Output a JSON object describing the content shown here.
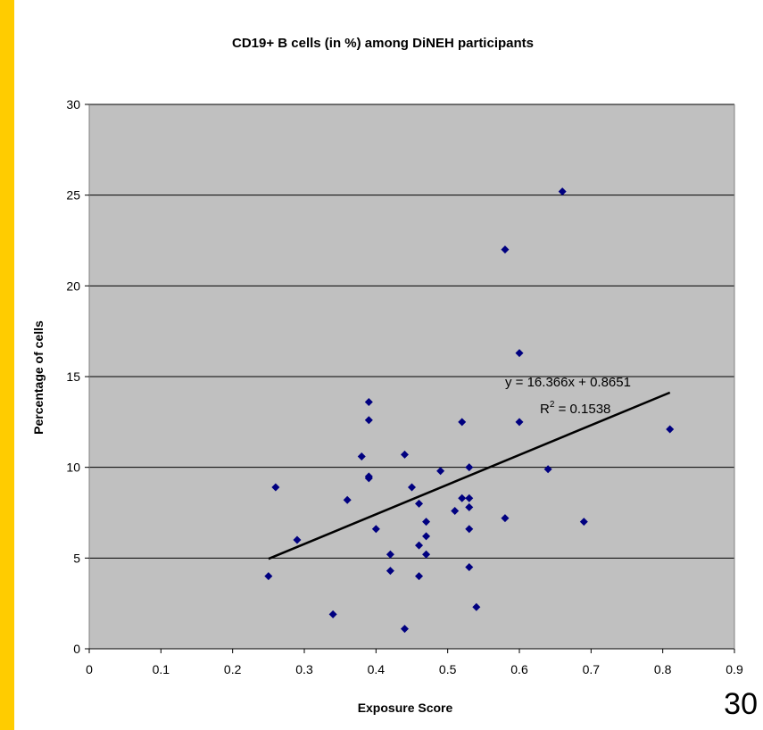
{
  "chart_data": {
    "type": "scatter",
    "title": "CD19+ B cells (in %) among DiNEH participants",
    "xlabel": "Exposure Score",
    "ylabel": "Percentage of cells",
    "xlim": [
      0,
      0.9
    ],
    "ylim": [
      0,
      30
    ],
    "x_ticks": [
      "0",
      "0.1",
      "0.2",
      "0.3",
      "0.4",
      "0.5",
      "0.6",
      "0.7",
      "0.8",
      "0.9"
    ],
    "y_ticks": [
      "0",
      "5",
      "10",
      "15",
      "20",
      "25",
      "30"
    ],
    "grid": "horizontal",
    "background": "#c0c0c0",
    "marker_color": "#000080",
    "points": [
      {
        "x": 0.25,
        "y": 4.0
      },
      {
        "x": 0.26,
        "y": 8.9
      },
      {
        "x": 0.29,
        "y": 6.0
      },
      {
        "x": 0.34,
        "y": 1.9
      },
      {
        "x": 0.36,
        "y": 8.2
      },
      {
        "x": 0.38,
        "y": 10.6
      },
      {
        "x": 0.39,
        "y": 13.6
      },
      {
        "x": 0.39,
        "y": 12.6
      },
      {
        "x": 0.39,
        "y": 9.5
      },
      {
        "x": 0.39,
        "y": 9.4
      },
      {
        "x": 0.4,
        "y": 6.6
      },
      {
        "x": 0.42,
        "y": 5.2
      },
      {
        "x": 0.42,
        "y": 4.3
      },
      {
        "x": 0.44,
        "y": 10.7
      },
      {
        "x": 0.44,
        "y": 1.1
      },
      {
        "x": 0.45,
        "y": 8.9
      },
      {
        "x": 0.46,
        "y": 8.0
      },
      {
        "x": 0.46,
        "y": 5.7
      },
      {
        "x": 0.46,
        "y": 4.0
      },
      {
        "x": 0.47,
        "y": 7.0
      },
      {
        "x": 0.47,
        "y": 6.2
      },
      {
        "x": 0.47,
        "y": 5.2
      },
      {
        "x": 0.49,
        "y": 9.8
      },
      {
        "x": 0.51,
        "y": 7.6
      },
      {
        "x": 0.52,
        "y": 12.5
      },
      {
        "x": 0.52,
        "y": 8.3
      },
      {
        "x": 0.53,
        "y": 10.0
      },
      {
        "x": 0.53,
        "y": 8.3
      },
      {
        "x": 0.53,
        "y": 7.8
      },
      {
        "x": 0.53,
        "y": 6.6
      },
      {
        "x": 0.53,
        "y": 4.5
      },
      {
        "x": 0.54,
        "y": 2.3
      },
      {
        "x": 0.58,
        "y": 22.0
      },
      {
        "x": 0.58,
        "y": 7.2
      },
      {
        "x": 0.6,
        "y": 16.3
      },
      {
        "x": 0.6,
        "y": 12.5
      },
      {
        "x": 0.64,
        "y": 9.9
      },
      {
        "x": 0.66,
        "y": 25.2
      },
      {
        "x": 0.69,
        "y": 7.0
      },
      {
        "x": 0.81,
        "y": 12.1
      }
    ],
    "trendline": {
      "slope": 16.366,
      "intercept": 0.8651,
      "x_range": [
        0.25,
        0.81
      ],
      "equation": "y = 16.366x + 0.8651",
      "r2_prefix": "R",
      "r2_exp": "2",
      "r2_value": " = 0.1538"
    }
  },
  "page_number": "30"
}
